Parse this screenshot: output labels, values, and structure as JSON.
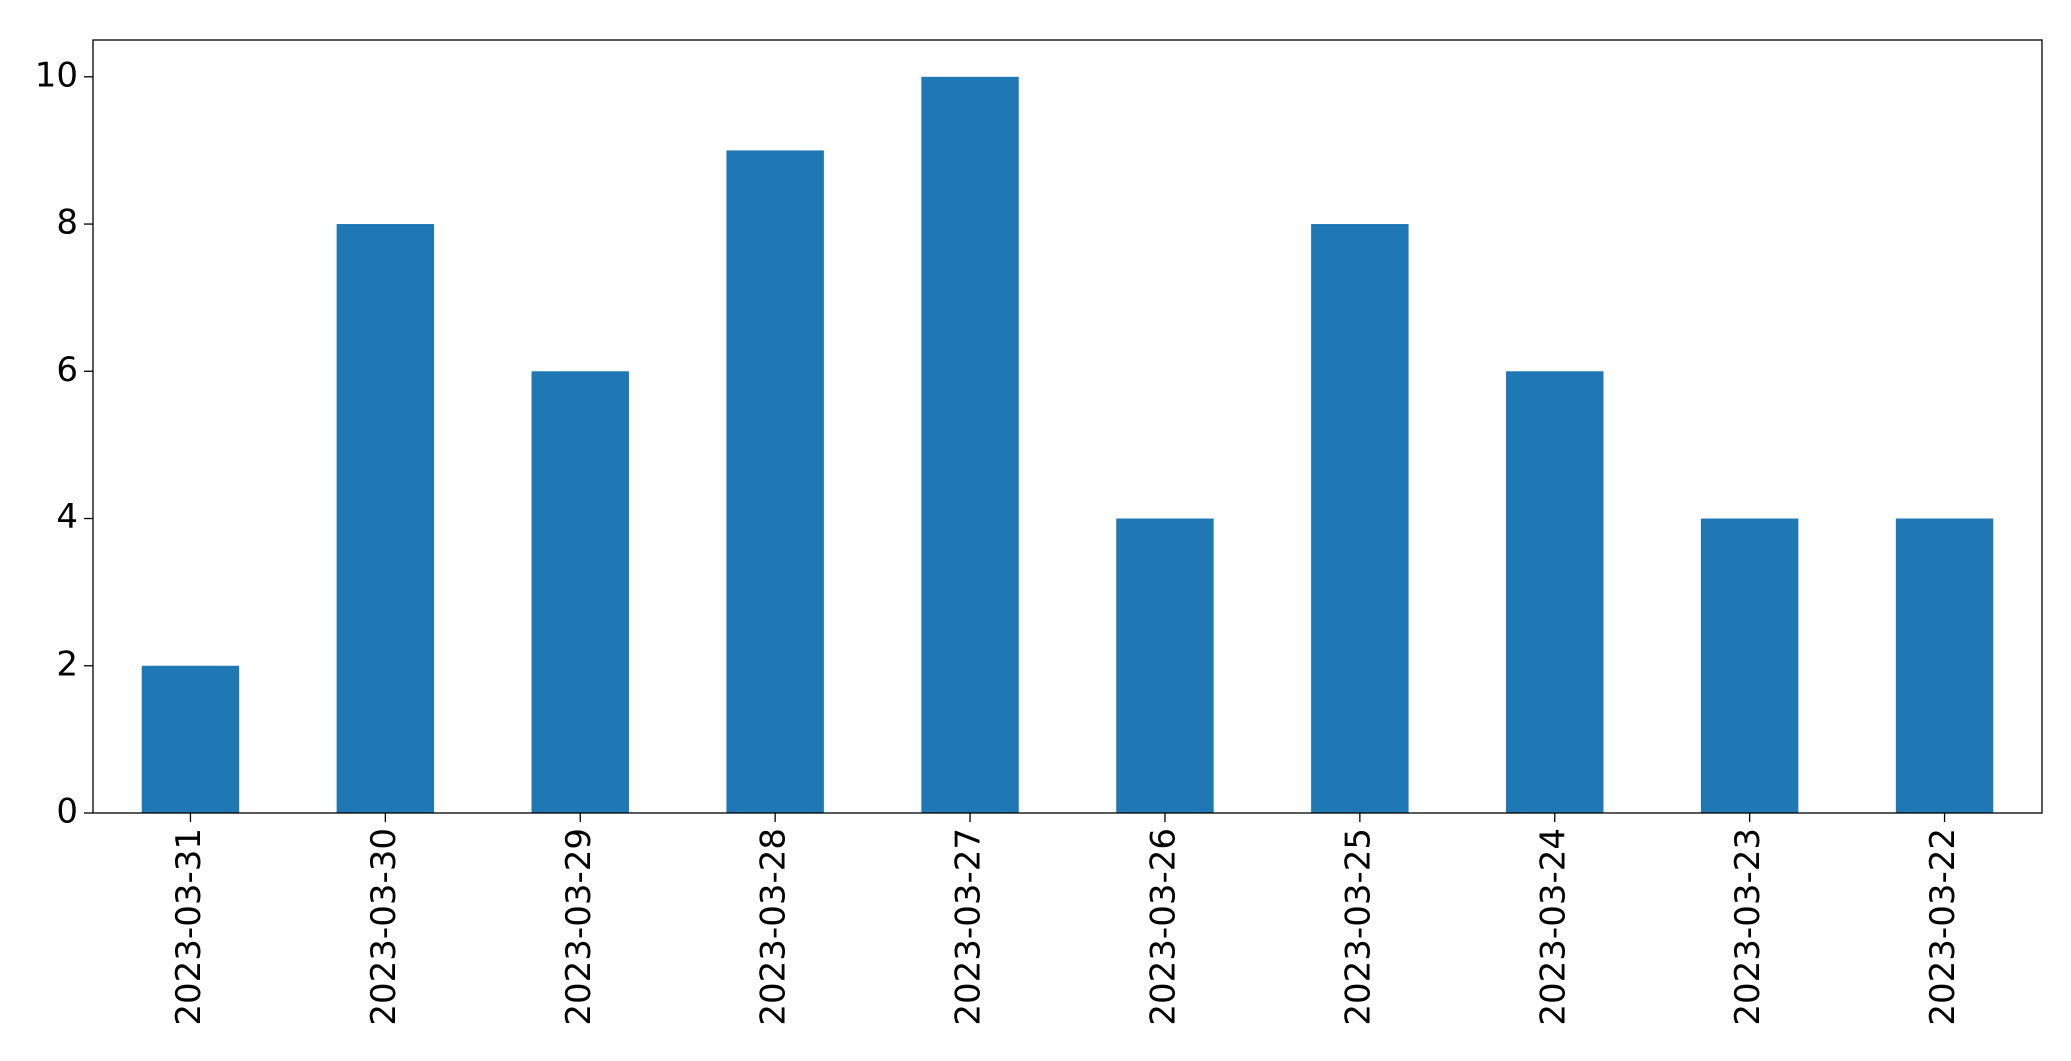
{
  "chart_data": {
    "type": "bar",
    "categories": [
      "2023-03-31",
      "2023-03-30",
      "2023-03-29",
      "2023-03-28",
      "2023-03-27",
      "2023-03-26",
      "2023-03-25",
      "2023-03-24",
      "2023-03-23",
      "2023-03-22"
    ],
    "values": [
      2,
      8,
      6,
      9,
      10,
      4,
      8,
      6,
      4,
      4
    ],
    "color": "#1f77b4",
    "ylim": [
      0,
      10.5
    ],
    "yticks": [
      0,
      2,
      4,
      6,
      8,
      10
    ],
    "grid": false
  }
}
